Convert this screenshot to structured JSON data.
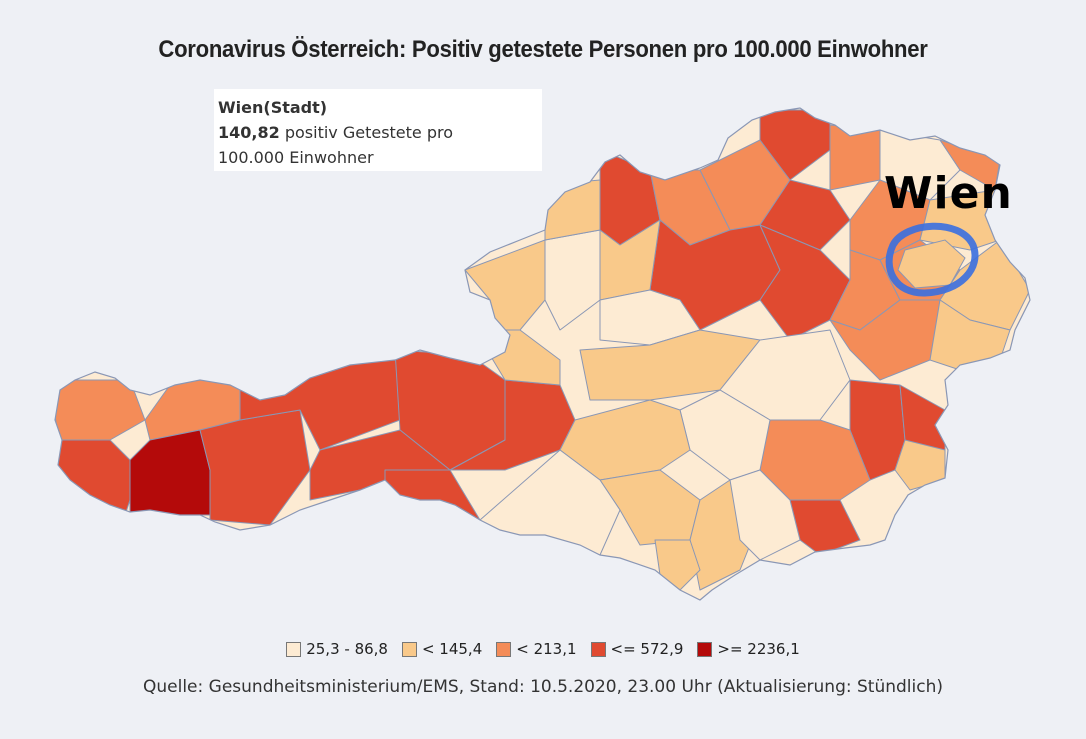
{
  "title": "Coronavirus Österreich: Positiv getestete Personen pro 100.000 Einwohner",
  "tooltip": {
    "region": "Wien(Stadt)",
    "value": "140,82",
    "text_after_value": " positiv Getestete pro",
    "text_line2": "100.000 Einwohner"
  },
  "annotation": {
    "label": "Wien",
    "circle_color": "#3a6fe0"
  },
  "legend": [
    {
      "label": "25,3 - 86,8",
      "color": "#fdebd3"
    },
    {
      "label": "< 145,4",
      "color": "#f9c98a"
    },
    {
      "label": "< 213,1",
      "color": "#f48c58"
    },
    {
      "label": "<= 572,9",
      "color": "#e04a30"
    },
    {
      "label": ">= 2236,1",
      "color": "#b40a0a"
    }
  ],
  "source": "Quelle: Gesundheitsministerium/EMS, Stand: 10.5.2020, 23.00 Uhr (Aktualisierung: Stündlich)"
}
